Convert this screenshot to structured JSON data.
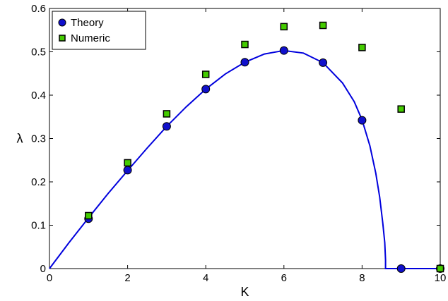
{
  "chart_data": {
    "type": "scatter",
    "title": "",
    "xlabel": "K",
    "ylabel": "λ",
    "xlim": [
      0,
      10
    ],
    "ylim": [
      0,
      0.6
    ],
    "xticks": [
      "0",
      "2",
      "4",
      "6",
      "8",
      "10"
    ],
    "yticks": [
      "0",
      "0.1",
      "0.2",
      "0.3",
      "0.4",
      "0.5",
      "0.6"
    ],
    "grid": false,
    "legend_position": "top-left",
    "curve": {
      "color": "#0000dd",
      "x": [
        0,
        0.5,
        1,
        1.5,
        2,
        2.5,
        3,
        3.5,
        4,
        4.5,
        5,
        5.5,
        6,
        6.5,
        7,
        7.5,
        7.8,
        8,
        8.2,
        8.35,
        8.45,
        8.53,
        8.58,
        8.6,
        8.6,
        9,
        10
      ],
      "y": [
        0,
        0.06,
        0.117,
        0.173,
        0.226,
        0.278,
        0.328,
        0.373,
        0.414,
        0.449,
        0.476,
        0.495,
        0.503,
        0.497,
        0.475,
        0.428,
        0.385,
        0.343,
        0.283,
        0.22,
        0.165,
        0.105,
        0.06,
        0.02,
        0,
        0,
        0
      ]
    },
    "series": [
      {
        "name": "Theory",
        "marker": "circle",
        "color": "#1010cc",
        "x": [
          1,
          2,
          3,
          4,
          5,
          6,
          7,
          8,
          9,
          10
        ],
        "y": [
          0.115,
          0.227,
          0.328,
          0.414,
          0.476,
          0.503,
          0.475,
          0.342,
          0,
          0
        ]
      },
      {
        "name": "Numeric",
        "marker": "square",
        "color": "#44cc00",
        "x": [
          1,
          2,
          3,
          4,
          5,
          6,
          7,
          8,
          9,
          10
        ],
        "y": [
          0.122,
          0.244,
          0.357,
          0.448,
          0.517,
          0.558,
          0.561,
          0.51,
          0.368,
          0
        ]
      }
    ]
  }
}
